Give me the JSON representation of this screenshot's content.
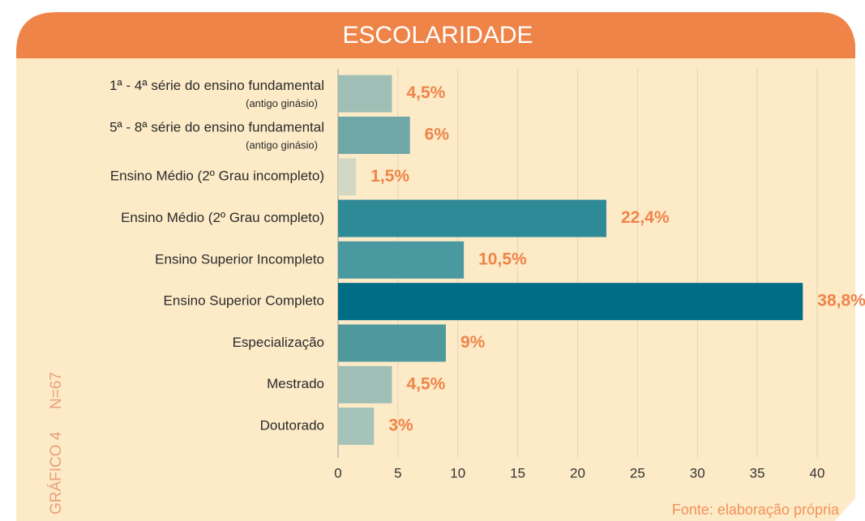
{
  "chart_data": {
    "type": "barh",
    "title": "ESCOLARIDADE",
    "categories": [
      "1ª - 4ª série do ensino fundamental",
      "5ª - 8ª série do ensino fundamental",
      "Ensino Médio (2º Grau incompleto)",
      "Ensino Médio (2º Grau completo)",
      "Ensino Superior Incompleto",
      "Ensino Superior Completo",
      "Especialização",
      "Mestrado",
      "Doutorado"
    ],
    "category_sublabels": [
      "(antigo ginásio)",
      "(antigo ginásio)",
      null,
      null,
      null,
      null,
      null,
      null,
      null
    ],
    "values": [
      4.5,
      6,
      1.5,
      22.4,
      10.5,
      38.8,
      9,
      4.5,
      3
    ],
    "value_labels": [
      "4,5%",
      "6%",
      "1,5%",
      "22,4%",
      "10,5%",
      "38,8%",
      "9%",
      "4,5%",
      "3%"
    ],
    "colors": [
      "#9fbfb6",
      "#6fa6a6",
      "#d3d8c4",
      "#2e8a96",
      "#4a98a0",
      "#006d87",
      "#4f999d",
      "#9fbfb6",
      "#a5c3b9"
    ],
    "xlim": [
      0,
      40
    ],
    "xticks": [
      0,
      5,
      10,
      15,
      20,
      25,
      30,
      35,
      40
    ],
    "grid": true,
    "side_label": "GRÁFICO 4",
    "sample_size": "N=67",
    "source": "Fonte: elaboração própria"
  }
}
